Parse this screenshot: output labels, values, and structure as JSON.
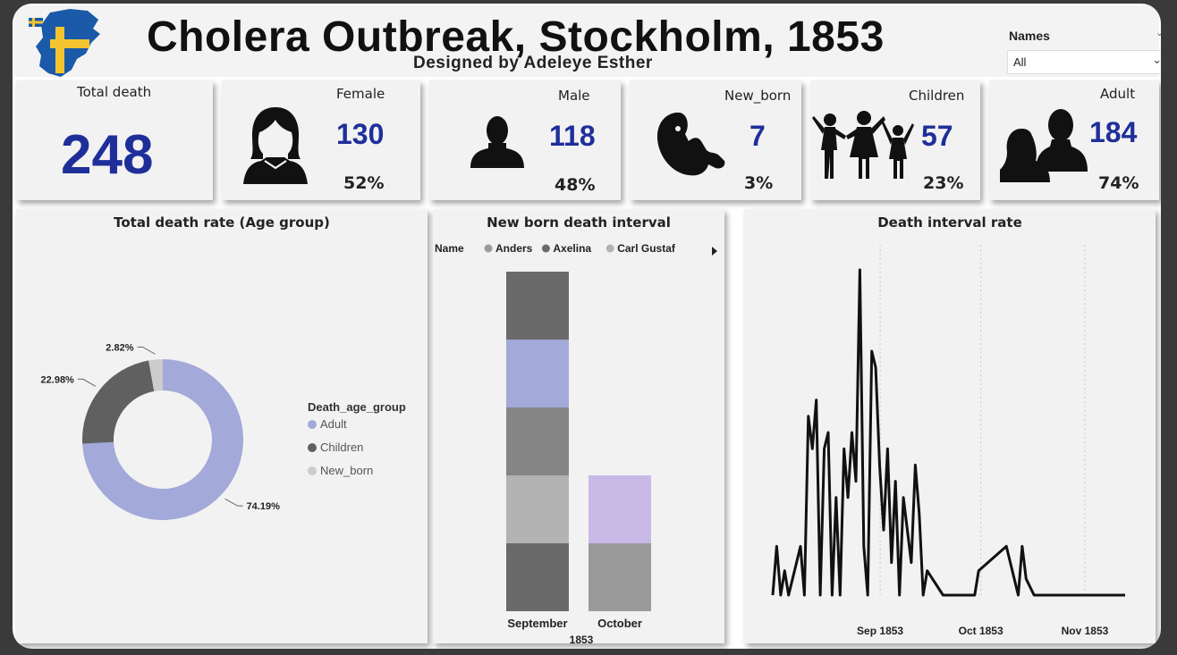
{
  "header": {
    "title": "Cholera Outbreak, Stockholm, 1853",
    "subtitle": "Designed by Adeleye Esther",
    "slicer": {
      "label": "Names",
      "value": "All"
    }
  },
  "cards": {
    "total": {
      "label": "Total death",
      "value": "248"
    },
    "female": {
      "label": "Female",
      "value": "130",
      "pct": "52%"
    },
    "male": {
      "label": "Male",
      "value": "118",
      "pct": "48%"
    },
    "newborn": {
      "label": "New_born",
      "value": "7",
      "pct": "3%"
    },
    "children": {
      "label": "Children",
      "value": "57",
      "pct": "23%"
    },
    "adult": {
      "label": "Adult",
      "value": "184",
      "pct": "74%"
    }
  },
  "colors": {
    "accent": "#1f2f9a",
    "adult": "#a3a9d8",
    "children": "#606060",
    "new_born": "#cccccc"
  },
  "chart_data": [
    {
      "type": "pie",
      "title": "Total death rate (Age group)",
      "legend_title": "Death_age_group",
      "legend_position": "right",
      "slices": [
        {
          "label": "Adult",
          "value": 74.19,
          "display": "74.19%"
        },
        {
          "label": "Children",
          "value": 22.98,
          "display": "22.98%"
        },
        {
          "label": "New_born",
          "value": 2.82,
          "display": "2.82%"
        }
      ]
    },
    {
      "type": "bar",
      "title": "New born death interval",
      "legend_title": "Name",
      "legend_entries": [
        "Anders",
        "Axelina",
        "Carl Gustaf"
      ],
      "categories": [
        "September",
        "October"
      ],
      "xlabel_group": "1853",
      "stacks": [
        {
          "category": "September",
          "segments": [
            {
              "value": 1,
              "color": "#6a6a6a"
            },
            {
              "value": 1,
              "color": "#b3b3b3"
            },
            {
              "value": 1,
              "color": "#858585"
            },
            {
              "value": 1,
              "color": "#a3a9d8"
            },
            {
              "value": 1,
              "color": "#6a6a6a"
            }
          ]
        },
        {
          "category": "October",
          "segments": [
            {
              "value": 1,
              "color": "#9a9a9a"
            },
            {
              "value": 1,
              "color": "#c8b9e6"
            }
          ]
        }
      ],
      "ylim": [
        0,
        5
      ]
    },
    {
      "type": "line",
      "title": "Death interval rate",
      "x_ticks": [
        "Sep 1853",
        "Oct 1853",
        "Nov 1853"
      ],
      "x_tick_days": [
        33,
        63,
        94
      ],
      "x_start": "1853-07-31",
      "x_end": "1853-12-10",
      "ylim": [
        0,
        20
      ],
      "points": [
        [
          1,
          0
        ],
        [
          2,
          3
        ],
        [
          3,
          0
        ],
        [
          4,
          1.5
        ],
        [
          5,
          0
        ],
        [
          7,
          2
        ],
        [
          8,
          3
        ],
        [
          9,
          0
        ],
        [
          10,
          11
        ],
        [
          11,
          9
        ],
        [
          12,
          12
        ],
        [
          13,
          0
        ],
        [
          14,
          9
        ],
        [
          15,
          10
        ],
        [
          16,
          0
        ],
        [
          17,
          6
        ],
        [
          18,
          0
        ],
        [
          19,
          9
        ],
        [
          20,
          6
        ],
        [
          21,
          10
        ],
        [
          22,
          7
        ],
        [
          23,
          20
        ],
        [
          24,
          3
        ],
        [
          25,
          0
        ],
        [
          26,
          15
        ],
        [
          27,
          14
        ],
        [
          28,
          8
        ],
        [
          29,
          4
        ],
        [
          30,
          9
        ],
        [
          31,
          2
        ],
        [
          32,
          7
        ],
        [
          33,
          0
        ],
        [
          34,
          6
        ],
        [
          35,
          4
        ],
        [
          36,
          2
        ],
        [
          37,
          8
        ],
        [
          38,
          5
        ],
        [
          39,
          0
        ],
        [
          40,
          1.5
        ],
        [
          44,
          0
        ],
        [
          52,
          0
        ],
        [
          53,
          1.5
        ],
        [
          60,
          3
        ],
        [
          63,
          0
        ],
        [
          64,
          3
        ],
        [
          65,
          1
        ],
        [
          67,
          0
        ],
        [
          90,
          0
        ]
      ]
    }
  ]
}
